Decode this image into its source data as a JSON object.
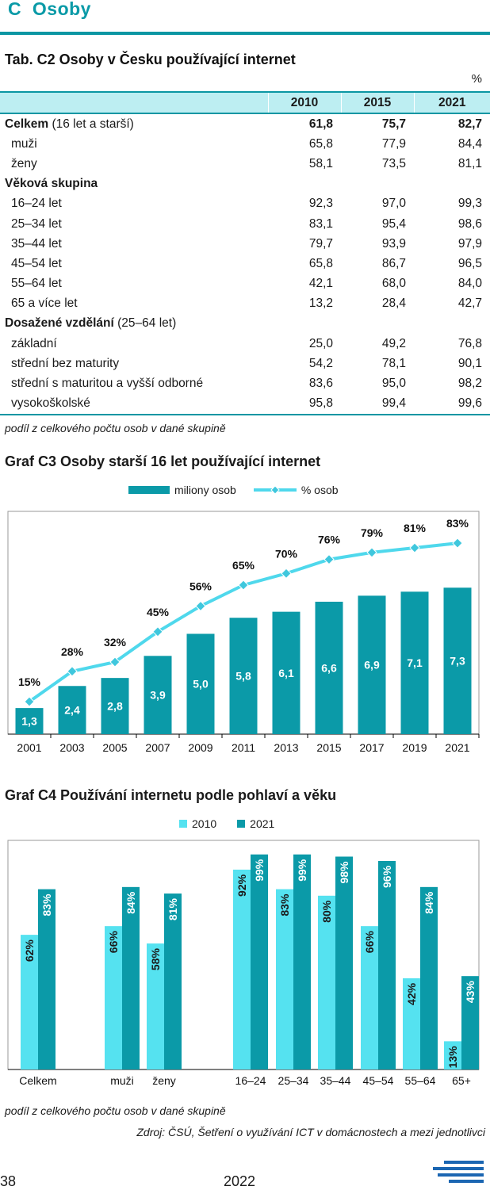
{
  "section": {
    "title": "C  Osoby"
  },
  "table": {
    "title": "Tab. C2 Osoby v Česku používající internet",
    "unit": "%",
    "years": [
      "2010",
      "2015",
      "2021"
    ],
    "rows": [
      {
        "label": "Celkem",
        "suffix": " (16 let a starší)",
        "values": [
          "61,8",
          "75,7",
          "82,7"
        ],
        "style": "total"
      },
      {
        "label": "muži",
        "values": [
          "65,8",
          "77,9",
          "84,4"
        ],
        "style": "indent"
      },
      {
        "label": "ženy",
        "values": [
          "58,1",
          "73,5",
          "81,1"
        ],
        "style": "indent"
      },
      {
        "label": "Věková skupina",
        "values": [
          "",
          "",
          ""
        ],
        "style": "group"
      },
      {
        "label": "16–24 let",
        "values": [
          "92,3",
          "97,0",
          "99,3"
        ],
        "style": "indent"
      },
      {
        "label": "25–34 let",
        "values": [
          "83,1",
          "95,4",
          "98,6"
        ],
        "style": "indent"
      },
      {
        "label": "35–44 let",
        "values": [
          "79,7",
          "93,9",
          "97,9"
        ],
        "style": "indent"
      },
      {
        "label": "45–54 let",
        "values": [
          "65,8",
          "86,7",
          "96,5"
        ],
        "style": "indent"
      },
      {
        "label": "55–64 let",
        "values": [
          "42,1",
          "68,0",
          "84,0"
        ],
        "style": "indent"
      },
      {
        "label": "65 a více let",
        "values": [
          "13,2",
          "28,4",
          "42,7"
        ],
        "style": "indent"
      },
      {
        "label": "Dosažené vzdělání",
        "suffix": " (25–64 let)",
        "values": [
          "",
          "",
          ""
        ],
        "style": "group"
      },
      {
        "label": "základní",
        "values": [
          "25,0",
          "49,2",
          "76,8"
        ],
        "style": "indent"
      },
      {
        "label": "střední bez maturity",
        "values": [
          "54,2",
          "78,1",
          "90,1"
        ],
        "style": "indent"
      },
      {
        "label": "střední s maturitou a vyšší odborné",
        "values": [
          "83,6",
          "95,0",
          "98,2"
        ],
        "style": "indent"
      },
      {
        "label": "vysokoškolské",
        "values": [
          "95,8",
          "99,4",
          "99,6"
        ],
        "style": "indent"
      }
    ],
    "note": "podíl z celkového počtu osob v dané skupině"
  },
  "colors": {
    "accent": "#0b96a3",
    "bar_dark": "#0b9aa8",
    "bar_light": "#55e2f0",
    "line": "#4fd8ec",
    "header_bg": "#bdeef2"
  },
  "chart_data": [
    {
      "type": "bar",
      "title": "Graf C3 Osoby starší 16 let používající internet",
      "categories": [
        "2001",
        "2003",
        "2005",
        "2007",
        "2009",
        "2011",
        "2013",
        "2015",
        "2017",
        "2019",
        "2021"
      ],
      "series": [
        {
          "name": "miliony osob",
          "type": "bar",
          "values": [
            1.3,
            2.4,
            2.8,
            3.9,
            5.0,
            5.8,
            6.1,
            6.6,
            6.9,
            7.1,
            7.3
          ],
          "labels": [
            "1,3",
            "2,4",
            "2,8",
            "3,9",
            "5,0",
            "5,8",
            "6,1",
            "6,6",
            "6,9",
            "7,1",
            "7,3"
          ]
        },
        {
          "name": "% osob",
          "type": "line",
          "values": [
            15,
            28,
            32,
            45,
            56,
            65,
            70,
            76,
            79,
            81,
            83
          ],
          "labels": [
            "15%",
            "28%",
            "32%",
            "45%",
            "56%",
            "65%",
            "70%",
            "76%",
            "79%",
            "81%",
            "83%"
          ]
        }
      ],
      "legend_position": "top",
      "grid": false
    },
    {
      "type": "bar",
      "title": "Graf C4 Používání internetu podle pohlaví a věku",
      "categories": [
        "Celkem",
        "muži",
        "ženy",
        "16–24",
        "25–34",
        "35–44",
        "45–54",
        "55–64",
        "65+"
      ],
      "series": [
        {
          "name": "2010",
          "values": [
            62,
            66,
            58,
            92,
            83,
            80,
            66,
            42,
            13
          ],
          "labels": [
            "62%",
            "66%",
            "58%",
            "92%",
            "83%",
            "80%",
            "66%",
            "42%",
            "13%"
          ]
        },
        {
          "name": "2021",
          "values": [
            83,
            84,
            81,
            99,
            99,
            98,
            96,
            84,
            43
          ],
          "labels": [
            "83%",
            "84%",
            "81%",
            "99%",
            "99%",
            "98%",
            "96%",
            "84%",
            "43%"
          ]
        }
      ],
      "ylim": [
        0,
        100
      ],
      "legend_position": "top",
      "grid": false,
      "note": "podíl z celkového počtu osob v dané skupině",
      "source": "Zdroj: ČSÚ, Šetření o využívání ICT v domácnostech a mezi jednotlivci"
    }
  ],
  "footer": {
    "page": "38",
    "year": "2022"
  }
}
